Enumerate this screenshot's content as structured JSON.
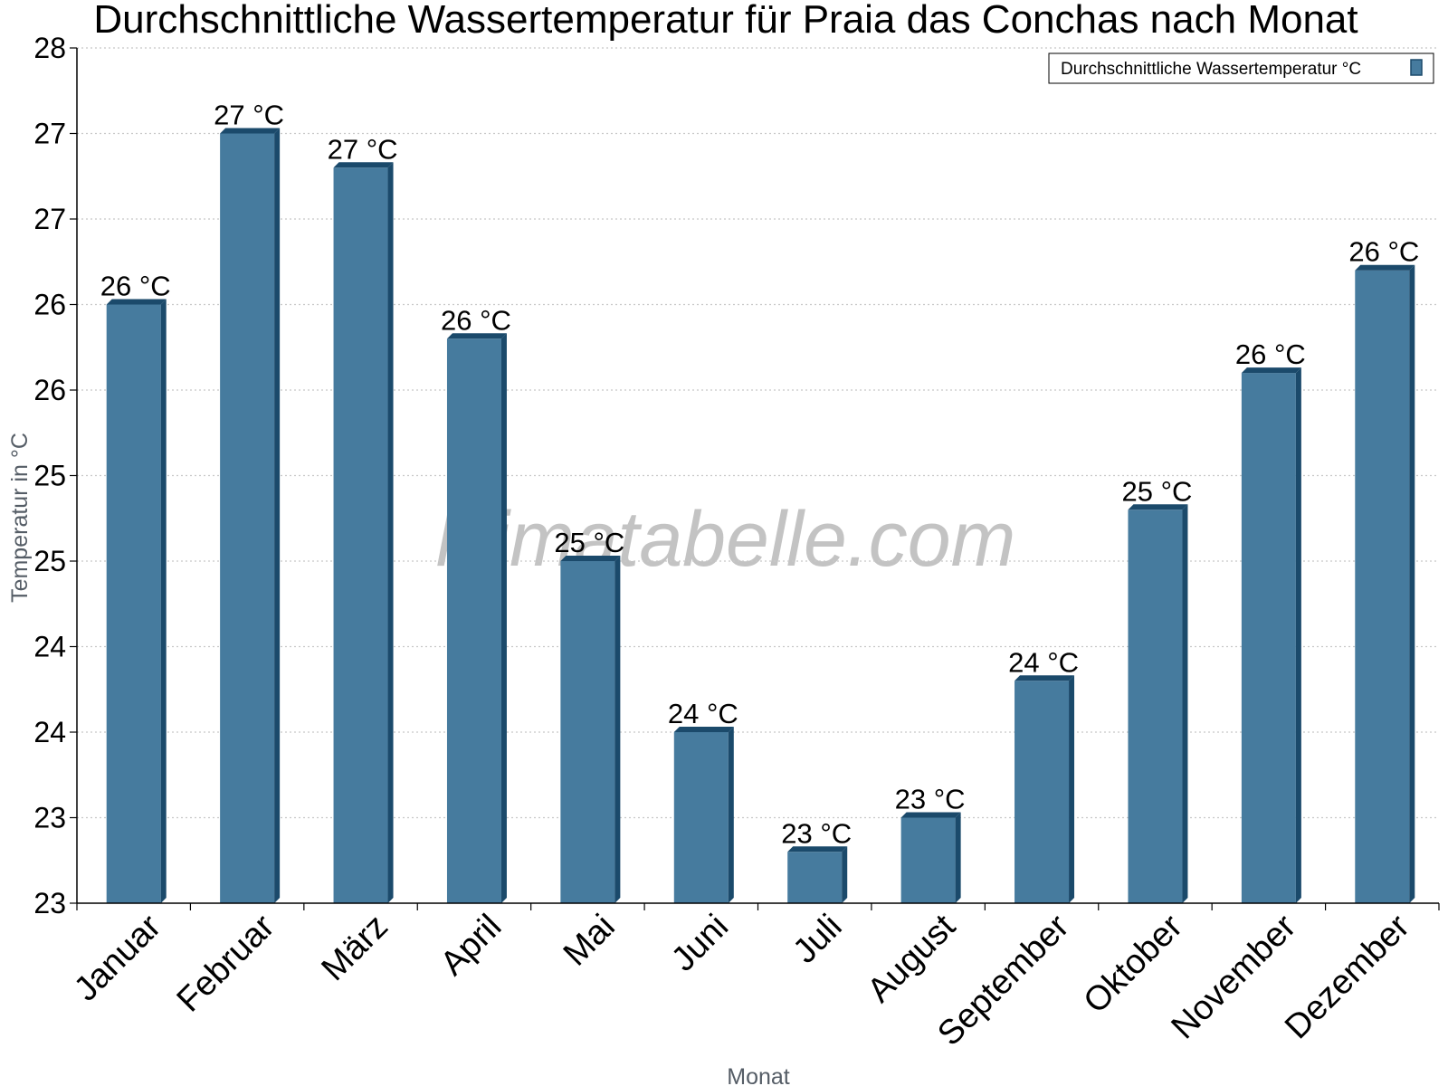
{
  "colors": {
    "bar_fill": "#467b9e",
    "bar_edge": "#1b4a6b",
    "grid": "#c8c8c8",
    "axis": "#000000",
    "watermark": "#b8b8b8"
  },
  "watermark": "klimatabelle.com",
  "chart_data": {
    "type": "bar",
    "title": "Durchschnittliche Wassertemperatur für Praia das Conchas nach Monat",
    "xlabel": "Monat",
    "ylabel": "Temperatur in °C",
    "ylim": [
      22.5,
      27.5
    ],
    "yticks": [
      22.5,
      23,
      23.5,
      24,
      24.5,
      25,
      25.5,
      26,
      26.5,
      27,
      27.5
    ],
    "ytick_labels": [
      "23",
      "23",
      "24",
      "24",
      "25",
      "25",
      "26",
      "26",
      "27",
      "27",
      "28"
    ],
    "grid": true,
    "legend": {
      "position": "top-right",
      "entries": [
        "Durchschnittliche Wassertemperatur °C"
      ]
    },
    "categories": [
      "Januar",
      "Februar",
      "März",
      "April",
      "Mai",
      "Juni",
      "Juli",
      "August",
      "September",
      "Oktober",
      "November",
      "Dezember"
    ],
    "series": [
      {
        "name": "Durchschnittliche Wassertemperatur °C",
        "values": [
          26.0,
          27.0,
          26.8,
          25.8,
          24.5,
          23.5,
          22.8,
          23.0,
          23.8,
          24.8,
          25.6,
          26.2
        ],
        "labels": [
          "26 °C",
          "27 °C",
          "27 °C",
          "26 °C",
          "25 °C",
          "24 °C",
          "23 °C",
          "23 °C",
          "24 °C",
          "25 °C",
          "26 °C",
          "26 °C"
        ]
      }
    ]
  }
}
